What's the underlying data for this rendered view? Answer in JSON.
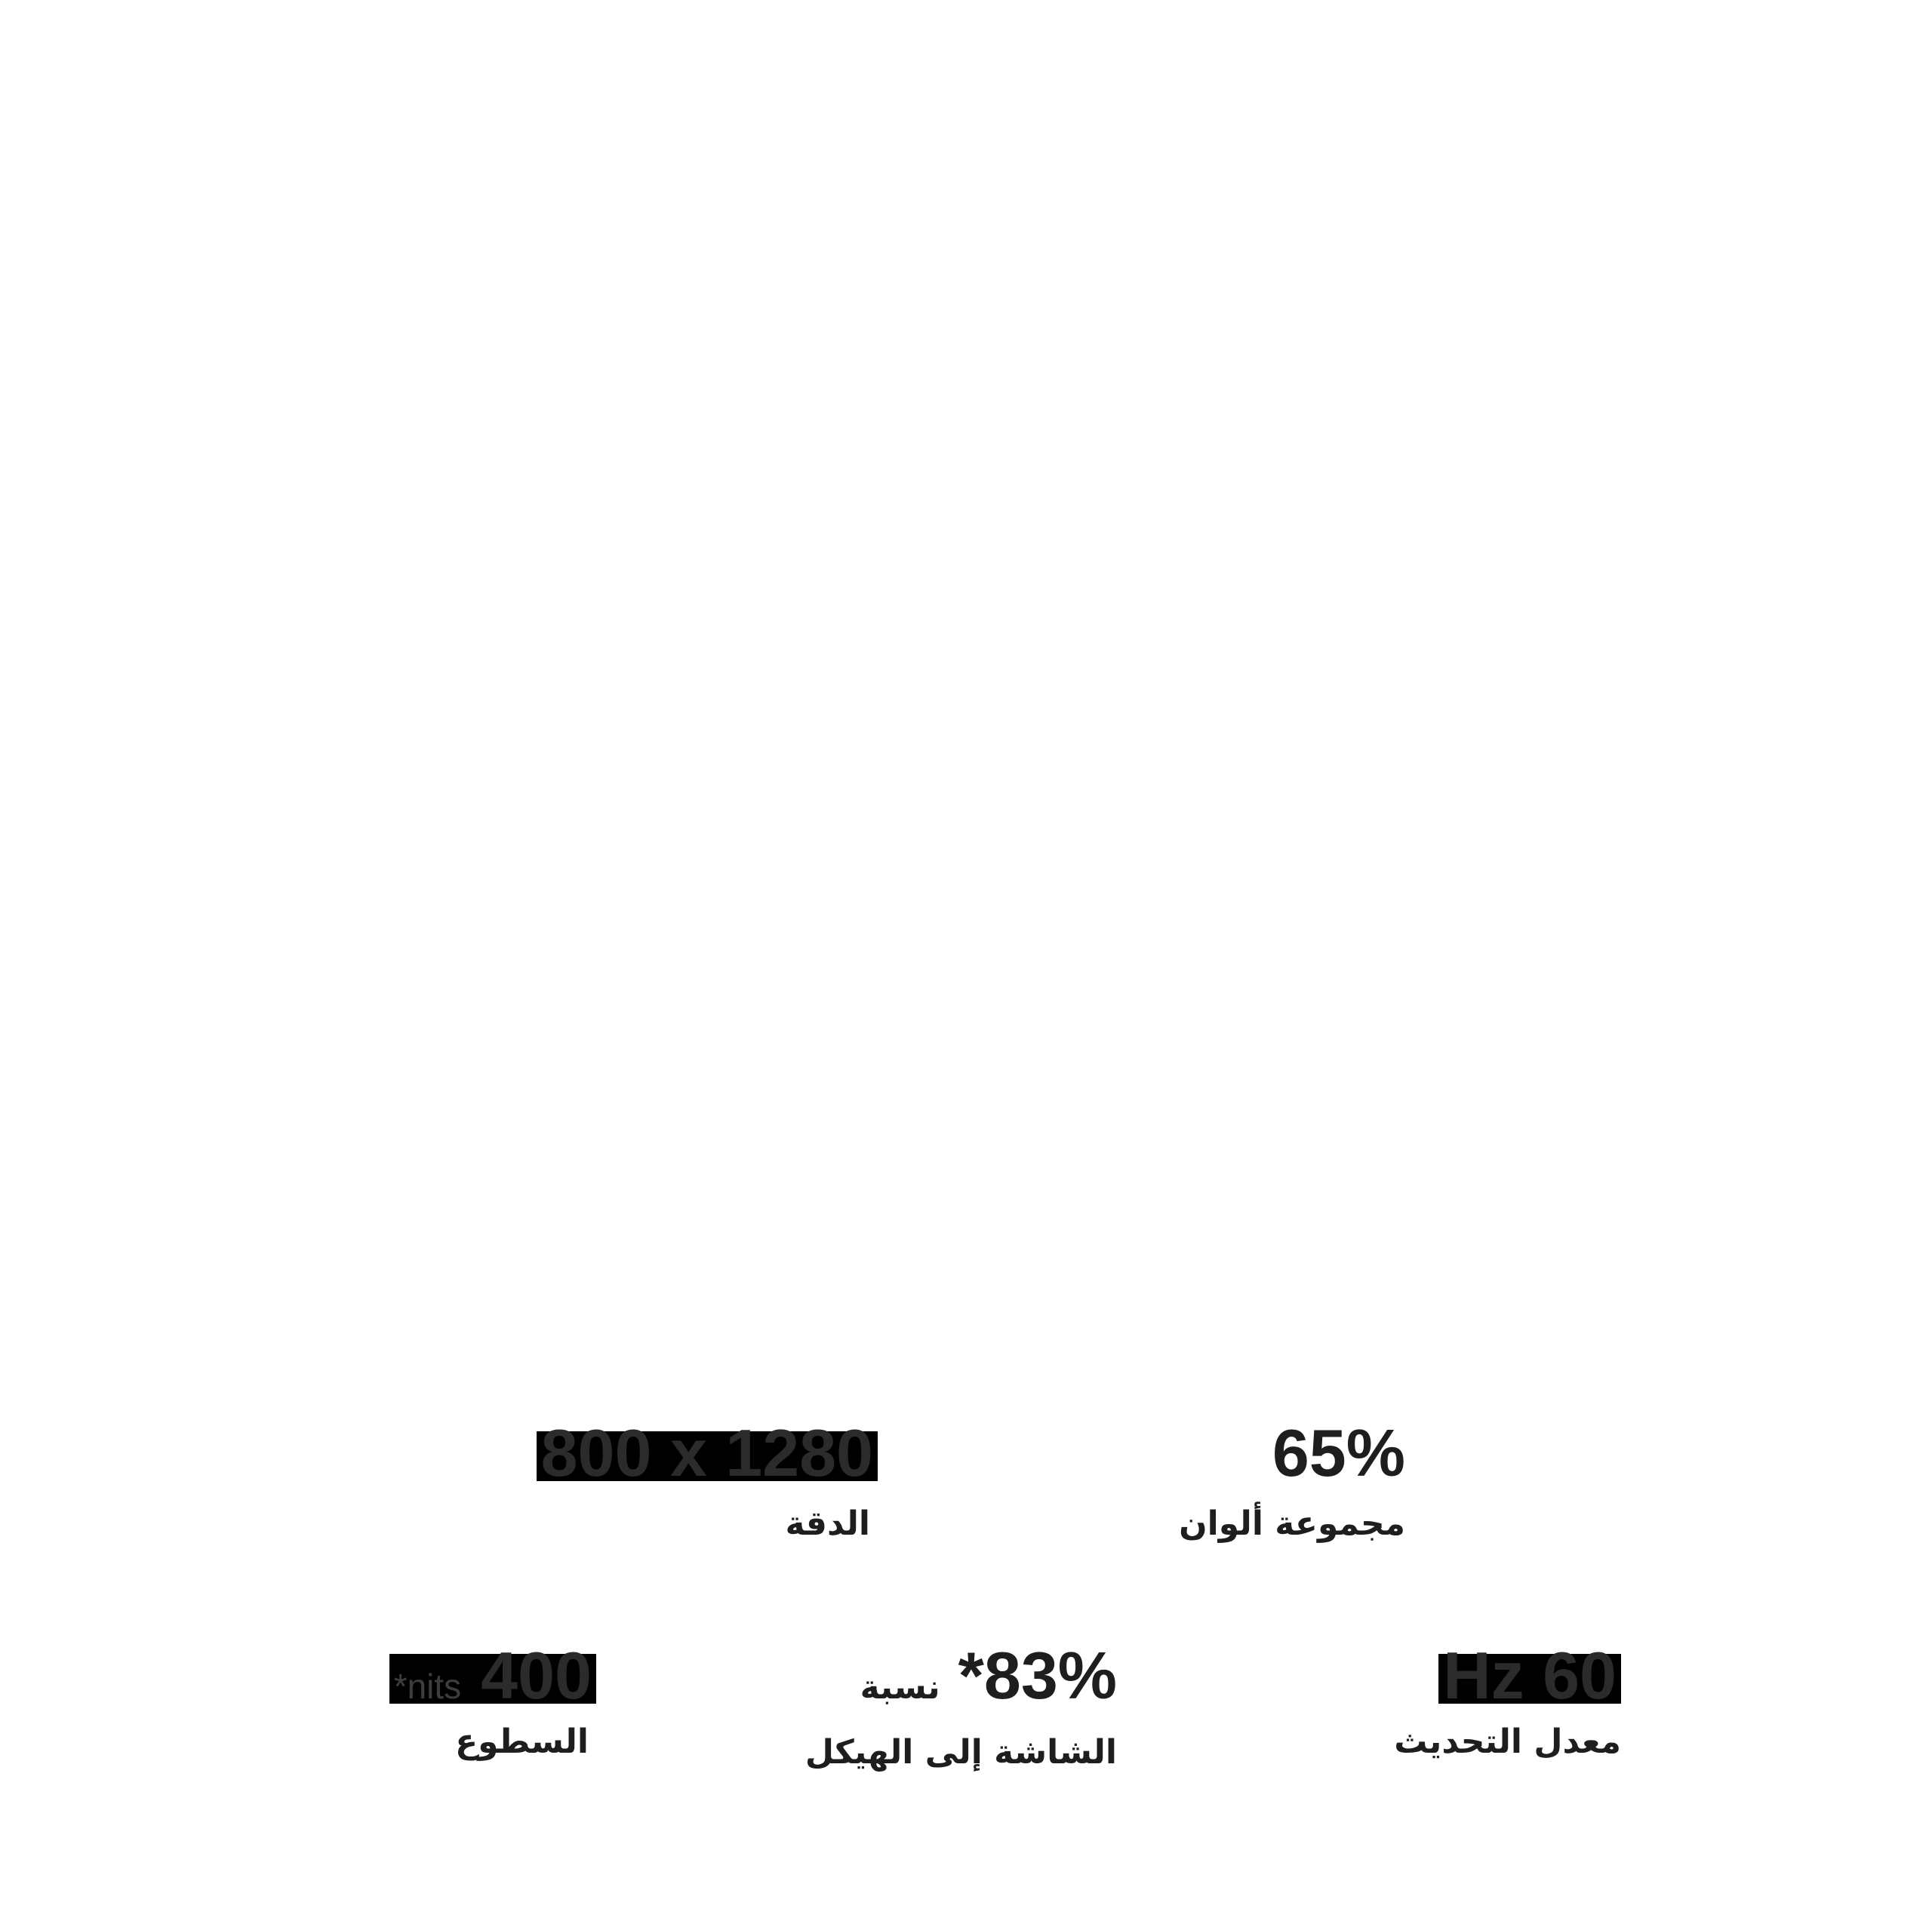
{
  "page": {
    "description_note": "Display spec highlights section (Arabic RTL), mostly blank white page",
    "background": "#ffffff"
  },
  "colors": {
    "page_background": "#ffffff",
    "box_background": "#000000",
    "box_value_text": "#2b2b2b",
    "unit_text": "#3d3d3d",
    "value_text": "#1e1e1e",
    "label_text": "#1e1e1e"
  },
  "specs": [
    {
      "id": "resolution",
      "value": "800 x 1280",
      "label": "الدقة",
      "boxed": true
    },
    {
      "id": "color-gamut",
      "value": "65%",
      "label": "مجموعة ألوان",
      "boxed": false
    },
    {
      "id": "brightness",
      "unit": "*nits",
      "value": "400",
      "label": "السطوع",
      "boxed": true
    },
    {
      "id": "screen-to-body-ratio",
      "inline_label": "نسبة",
      "value": "*83%",
      "label": "الشاشة إلى الهيكل",
      "boxed": false
    },
    {
      "id": "refresh-rate",
      "value": "Hz 60",
      "label": "معدل التحديث",
      "boxed": true
    }
  ]
}
